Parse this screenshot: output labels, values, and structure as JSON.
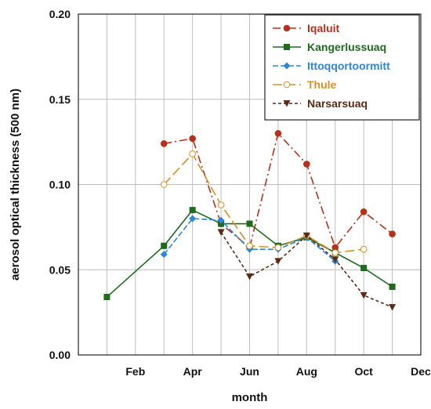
{
  "chart_data": {
    "type": "line",
    "xlabel": "month",
    "ylabel": "aerosol optical thickness (500 nm)",
    "xlim": [
      0,
      12
    ],
    "ylim": [
      0,
      0.2
    ],
    "x_ticks": [
      {
        "x": 2,
        "label": "Feb"
      },
      {
        "x": 4,
        "label": "Apr"
      },
      {
        "x": 6,
        "label": "Jun"
      },
      {
        "x": 8,
        "label": "Aug"
      },
      {
        "x": 10,
        "label": "Oct"
      },
      {
        "x": 12,
        "label": "Dec"
      }
    ],
    "y_ticks": [
      {
        "y": 0.0,
        "label": "0.00"
      },
      {
        "y": 0.05,
        "label": "0.05"
      },
      {
        "y": 0.1,
        "label": "0.10"
      },
      {
        "y": 0.15,
        "label": "0.15"
      },
      {
        "y": 0.2,
        "label": "0.20"
      }
    ],
    "grid": true,
    "legend_position": "top-right",
    "series": [
      {
        "name": "Iqaluit",
        "color": "#b5311c",
        "marker": "circle",
        "dash": "10,4,2,4",
        "x": [
          3,
          4,
          5,
          6,
          7,
          8,
          9,
          10,
          11
        ],
        "y": [
          0.124,
          0.127,
          0.077,
          0.063,
          0.13,
          0.112,
          0.063,
          0.084,
          0.071
        ]
      },
      {
        "name": "Kangerlussuaq",
        "color": "#1e6b1e",
        "marker": "square",
        "dash": "",
        "x": [
          1,
          3,
          4,
          5,
          6,
          7,
          8,
          9,
          10,
          11
        ],
        "y": [
          0.034,
          0.064,
          0.085,
          0.077,
          0.077,
          0.064,
          0.069,
          0.06,
          0.051,
          0.04
        ]
      },
      {
        "name": "Ittoqqortoormitt",
        "color": "#2f86d8",
        "marker": "diamond",
        "dash": "7,3",
        "x": [
          3,
          4,
          5,
          6,
          7,
          8,
          9
        ],
        "y": [
          0.059,
          0.08,
          0.079,
          0.062,
          0.062,
          0.069,
          0.055
        ]
      },
      {
        "name": "Thule",
        "color": "#d4902a",
        "marker": "open-circle",
        "dash": "12,5",
        "x": [
          3,
          4,
          5,
          6,
          7,
          8,
          9,
          10
        ],
        "y": [
          0.1,
          0.118,
          0.088,
          0.064,
          0.063,
          0.07,
          0.06,
          0.062
        ]
      },
      {
        "name": "Narsarsuaq",
        "color": "#5a2a14",
        "marker": "triangle-down",
        "dash": "4,3",
        "x": [
          5,
          6,
          7,
          8,
          9,
          10,
          11
        ],
        "y": [
          0.072,
          0.046,
          0.055,
          0.07,
          0.056,
          0.035,
          0.028
        ]
      }
    ]
  }
}
